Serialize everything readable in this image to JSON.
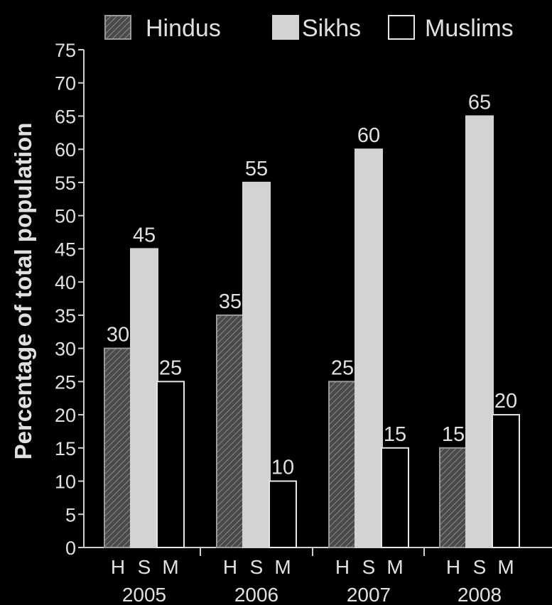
{
  "chart_data": {
    "type": "bar",
    "categories": [
      "2005",
      "2006",
      "2007",
      "2008"
    ],
    "series": [
      {
        "name": "Hindus",
        "short": "H",
        "values": [
          30,
          35,
          25,
          15
        ],
        "style": "hatched"
      },
      {
        "name": "Sikhs",
        "short": "S",
        "values": [
          45,
          55,
          60,
          65
        ],
        "style": "light-gray"
      },
      {
        "name": "Muslims",
        "short": "M",
        "values": [
          25,
          10,
          15,
          20
        ],
        "style": "outline"
      }
    ],
    "title": "",
    "xlabel": "",
    "ylabel": "Percentage of total population",
    "ylim": [
      0,
      75
    ],
    "yticks": [
      0,
      5,
      10,
      15,
      20,
      25,
      30,
      35,
      40,
      45,
      50,
      55,
      60,
      65,
      70,
      75
    ],
    "legend_position": "top",
    "grid": false,
    "colors": {
      "background": "#000000",
      "text": "#e0e0e0",
      "hatched_fill": "#555555",
      "sikhs_fill": "#d3d3d3",
      "muslims_fill": "#000000",
      "axis": "#cfcfcf"
    }
  }
}
